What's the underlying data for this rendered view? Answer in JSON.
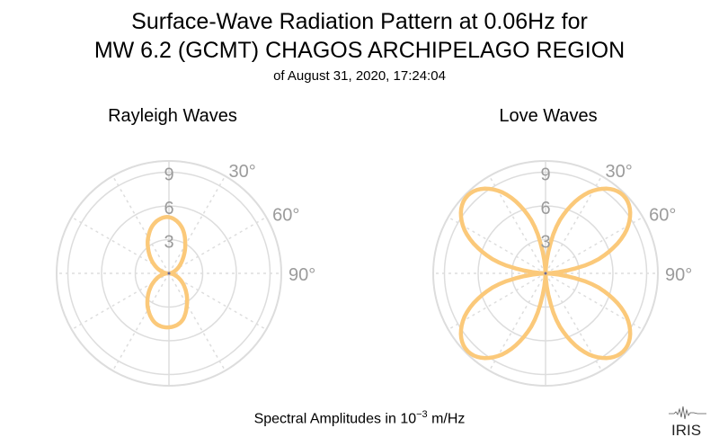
{
  "title_line1": "Surface-Wave Radiation Pattern at 0.06Hz for",
  "title_line2": "MW 6.2 (GCMT) CHAGOS ARCHIPELAGO REGION",
  "title_line3": "of August 31, 2020, 17:24:04",
  "footer": {
    "prefix": "Spectral Amplitudes in 10",
    "exponent": "−3",
    "suffix": " m/Hz"
  },
  "logo_text": "IRIS",
  "colors": {
    "curve": "#FBC97A",
    "grid": "#DDDDDD",
    "label": "#9B9B9B"
  },
  "chart_data": [
    {
      "type": "polar",
      "title": "Rayleigh Waves",
      "radial_ticks": [
        "3",
        "6",
        "9"
      ],
      "radial_range": [
        0,
        10
      ],
      "angle_labels": [
        "30°",
        "60°",
        "90°"
      ],
      "azimuth_deg": [
        0,
        15,
        30,
        45,
        60,
        75,
        90,
        105,
        120,
        135,
        150,
        165,
        180,
        195,
        210,
        225,
        240,
        255,
        270,
        285,
        300,
        315,
        330,
        345
      ],
      "amplitude": [
        5.0,
        4.3,
        2.9,
        1.7,
        0.9,
        0.35,
        0.1,
        0.5,
        1.2,
        2.1,
        3.2,
        4.4,
        4.8,
        4.6,
        3.7,
        2.6,
        1.6,
        0.8,
        0.2,
        0.7,
        1.5,
        2.5,
        3.7,
        4.7
      ]
    },
    {
      "type": "polar",
      "title": "Love Waves",
      "radial_ticks": [
        "3",
        "6",
        "9"
      ],
      "radial_range": [
        0,
        10
      ],
      "angle_labels": [
        "30°",
        "60°",
        "90°"
      ],
      "azimuth_deg": [
        0,
        15,
        30,
        45,
        60,
        75,
        90,
        105,
        120,
        135,
        150,
        165,
        180,
        195,
        210,
        225,
        240,
        255,
        270,
        285,
        300,
        315,
        330,
        345
      ],
      "amplitude": [
        0.0,
        4.9,
        8.5,
        9.8,
        8.5,
        4.9,
        0.0,
        4.9,
        8.5,
        9.8,
        8.5,
        4.9,
        0.0,
        4.9,
        8.5,
        9.8,
        8.5,
        4.9,
        0.0,
        4.9,
        8.5,
        9.8,
        8.5,
        4.9
      ]
    }
  ]
}
